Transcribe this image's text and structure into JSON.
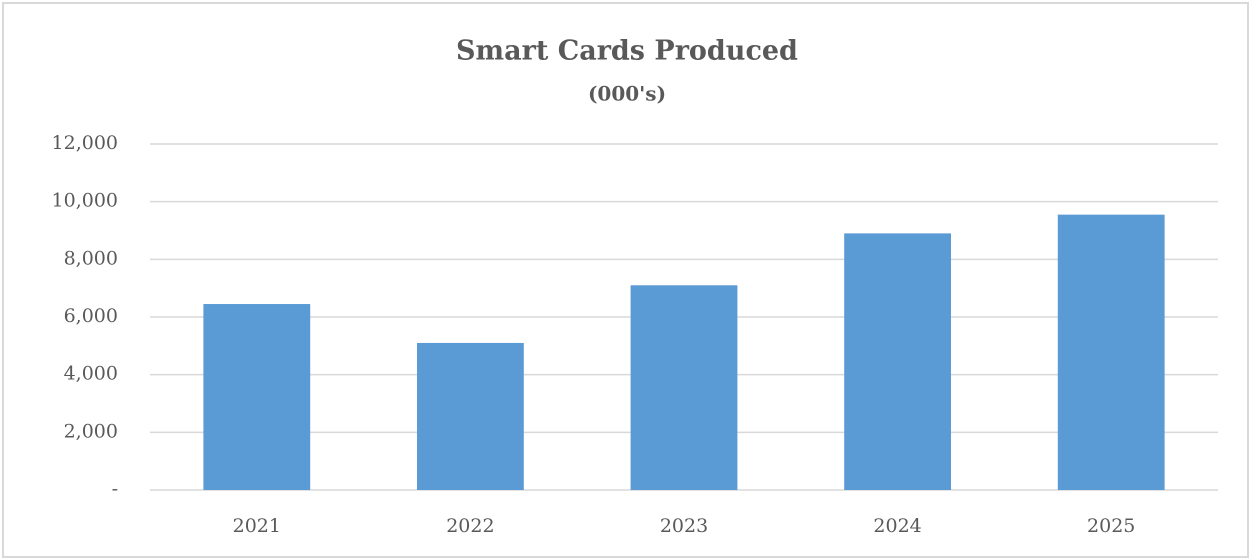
{
  "chart_data": {
    "type": "bar",
    "title": "Smart Cards Produced",
    "subtitle": "(000's)",
    "categories": [
      "2021",
      "2022",
      "2023",
      "2024",
      "2025"
    ],
    "values": [
      6450,
      5100,
      7100,
      8900,
      9550
    ],
    "color": "#5b9bd5",
    "ylim": [
      0,
      12000
    ],
    "yticks": [
      {
        "value": 0,
        "label": "-"
      },
      {
        "value": 2000,
        "label": "2,000"
      },
      {
        "value": 4000,
        "label": "4,000"
      },
      {
        "value": 6000,
        "label": "6,000"
      },
      {
        "value": 8000,
        "label": "8,000"
      },
      {
        "value": 10000,
        "label": "10,000"
      },
      {
        "value": 12000,
        "label": "12,000"
      }
    ],
    "grid": true
  }
}
